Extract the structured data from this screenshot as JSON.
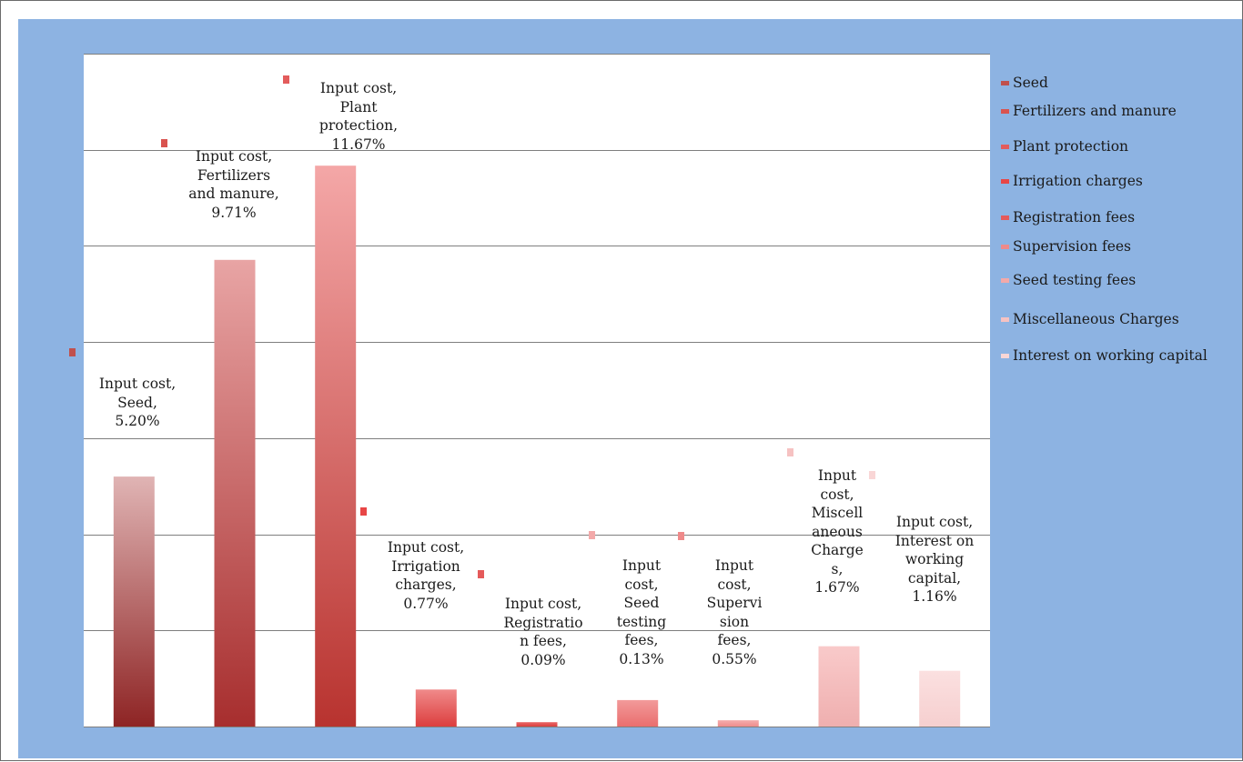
{
  "chart_data": {
    "type": "bar",
    "categories": [
      "Seed",
      "Fertilizers and manure",
      "Plant protection",
      "Irrigation charges",
      "Registration fees",
      "Supervision fees",
      "Seed testing fees",
      "Miscellaneous Charges",
      "Interest on working capital"
    ],
    "series": [
      {
        "name": "Input cost",
        "values": [
          5.2,
          9.71,
          11.67,
          0.77,
          0.09,
          0.13,
          0.55,
          1.67,
          1.16
        ]
      }
    ],
    "bar_order": [
      "Seed",
      "Fertilizers and manure",
      "Plant protection",
      "Irrigation charges",
      "Registration fees",
      "Seed testing fees",
      "Supervision fees",
      "Miscellaneous Charges",
      "Interest on working capital"
    ],
    "data_labels": [
      "Input cost,\nSeed,\n5.20%",
      "Input cost,\nFertilizers\nand manure,\n9.71%",
      "Input cost,\nPlant\nprotection,\n11.67%",
      "Input cost,\nIrrigation\ncharges,\n0.77%",
      "Input cost,\nRegistratio\nn fees,\n0.09%",
      "Input\ncost,\nSeed\ntesting\nfees,\n0.13%",
      "Input\ncost,\nSupervi\nsion\nfees,\n0.55%",
      "Input\ncost,\nMiscell\naneous\nCharge\ns,\n1.67%",
      "Input cost,\nInterest on\nworking\ncapital,\n1.16%"
    ],
    "legend": [
      "Seed",
      "Fertilizers and manure",
      "Plant protection",
      "Irrigation charges",
      "Registration fees",
      "Supervision fees",
      "Seed testing fees",
      "Miscellaneous Charges",
      "Interest on working capital"
    ],
    "legend_position": "right",
    "ylim": [
      0,
      14
    ],
    "grid": true,
    "colors": {
      "chart_background": "#8db3e2",
      "plot_background": "#ffffff",
      "gridline": "#7f7f7f",
      "bar_gradients": [
        [
          "#e0b4b4",
          "#8e2424"
        ],
        [
          "#e8a4a4",
          "#a72e2e"
        ],
        [
          "#f4a7a7",
          "#b8332f"
        ],
        [
          "#f08a8a",
          "#dc3e3e"
        ],
        [
          "#ea6767",
          "#d93f3f"
        ],
        [
          "#f29a9a",
          "#ea6e6e"
        ],
        [
          "#f5adad",
          "#ee8d8d"
        ],
        [
          "#f9caca",
          "#efafaf"
        ],
        [
          "#fbe0e0",
          "#f6cfcf"
        ]
      ],
      "legend_keys": [
        "#c0504d",
        "#d9534f",
        "#e35c5c",
        "#e84646",
        "#e55a5a",
        "#ef8a8a",
        "#f3a9a9",
        "#f6c2c2",
        "#f9d6d6"
      ]
    }
  }
}
